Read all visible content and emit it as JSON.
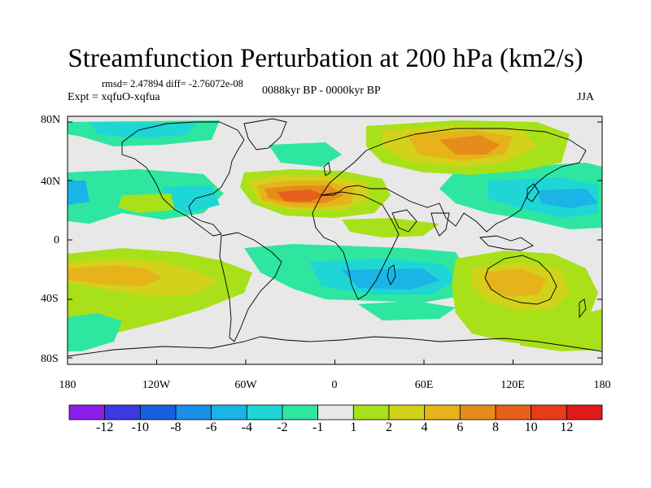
{
  "title": "Streamfunction Perturbation at 200 hPa (km2/s)",
  "stats": "rmsd= 2.47894 diff= -2.76072e-08",
  "experiment": "Expt = xqfuO-xqfua",
  "period": "0088kyr BP - 0000kyr BP",
  "season": "JJA",
  "lat_ticks": [
    "80N",
    "40N",
    "0",
    "40S",
    "80S"
  ],
  "lon_ticks": [
    "180",
    "120W",
    "60W",
    "0",
    "60E",
    "120E",
    "180"
  ],
  "colorbar": {
    "labels": [
      "-12",
      "-10",
      "-8",
      "-6",
      "-4",
      "-2",
      "-1",
      "1",
      "2",
      "4",
      "6",
      "8",
      "10",
      "12"
    ],
    "colors": [
      "#8b1ee8",
      "#3a3ae0",
      "#1560e0",
      "#1a90e6",
      "#1ab4e6",
      "#1ed6d6",
      "#2ee6a0",
      "#e8e8e8",
      "#a8e01a",
      "#d2d21a",
      "#e6b41a",
      "#e68c1a",
      "#e6601a",
      "#e63c1a",
      "#e01a1a"
    ]
  },
  "field_colors": {
    "neutral": "#e8e8e8",
    "pos1": "#a8e01a",
    "pos2": "#d2d21a",
    "pos3": "#e6b41a",
    "pos4": "#e68c1a",
    "pos5": "#e6601a",
    "neg1": "#2ee6a0",
    "neg2": "#1ed6d6",
    "neg3": "#1ab4e6",
    "neg4": "#1a90e6",
    "neg5": "#1560e0"
  }
}
